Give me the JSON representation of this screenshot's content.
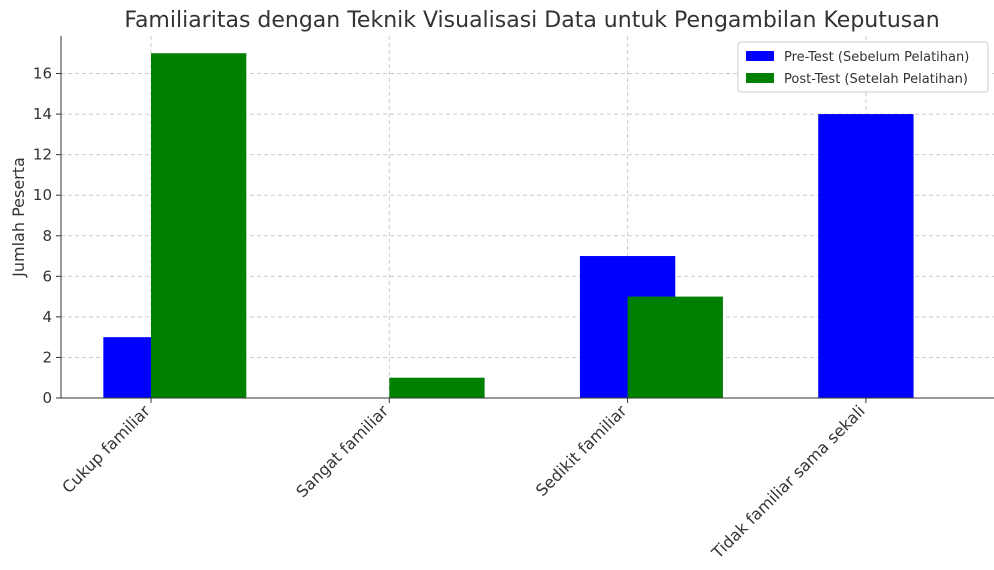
{
  "chart_data": {
    "type": "bar",
    "title": "Familiaritas dengan Teknik Visualisasi Data untuk Pengambilan Keputusan",
    "y_label": "Jumlah Peserta",
    "categories": [
      "Cukup familiar",
      "Sangat familiar",
      "Sedikit familiar",
      "Tidak familiar sama sekali"
    ],
    "series": [
      {
        "name": "Pre-Test (Sebelum Pelatihan)",
        "color": "#0000ff",
        "values": [
          3,
          0,
          7,
          14
        ]
      },
      {
        "name": "Post-Test (Setelah Pelatihan)",
        "color": "#008000",
        "values": [
          17,
          1,
          5,
          0
        ]
      }
    ],
    "ylim": [
      0,
      17.85
    ],
    "yticks": [
      0,
      2,
      4,
      6,
      8,
      10,
      12,
      14,
      16
    ],
    "grid": true,
    "legend": "upper right"
  }
}
